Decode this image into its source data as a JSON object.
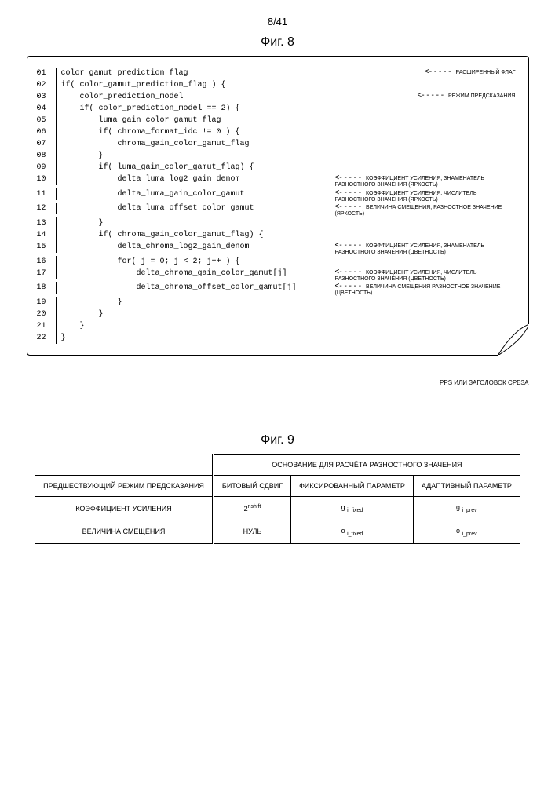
{
  "page": {
    "number": "8/41",
    "fig8_title": "Фиг. 8",
    "fig9_title": "Фиг. 9",
    "caption_right": "PPS ИЛИ ЗАГОЛОВОК СРЕЗА"
  },
  "code": {
    "lines": [
      {
        "n": "01",
        "t": "color_gamut_prediction_flag",
        "a": "РАСШИРЕННЫЙ ФЛАГ"
      },
      {
        "n": "02",
        "t": "if( color_gamut_prediction_flag ) {",
        "a": ""
      },
      {
        "n": "03",
        "t": "    color_prediction_model",
        "a": "РЕЖИМ ПРЕДСКАЗАНИЯ"
      },
      {
        "n": "04",
        "t": "    if( color_prediction_model == 2) {",
        "a": ""
      },
      {
        "n": "05",
        "t": "        luma_gain_color_gamut_flag",
        "a": ""
      },
      {
        "n": "06",
        "t": "        if( chroma_format_idc != 0 ) {",
        "a": ""
      },
      {
        "n": "07",
        "t": "            chroma_gain_color_gamut_flag",
        "a": ""
      },
      {
        "n": "08",
        "t": "        }",
        "a": ""
      },
      {
        "n": "09",
        "t": "        if( luma_gain_color_gamut_flag) {",
        "a": ""
      },
      {
        "n": "10",
        "t": "            delta_luma_log2_gain_denom",
        "a": "КОЭФФИЦИЕНТ УСИЛЕНИЯ, ЗНАМЕНАТЕЛЬ РАЗНОСТНОГО ЗНАЧЕНИЯ (ЯРКОСТЬ)"
      },
      {
        "n": "11",
        "t": "            delta_luma_gain_color_gamut",
        "a": "КОЭФФИЦИЕНТ УСИЛЕНИЯ, ЧИСЛИТЕЛЬ РАЗНОСТНОГО ЗНАЧЕНИЯ (ЯРКОСТЬ)"
      },
      {
        "n": "12",
        "t": "            delta_luma_offset_color_gamut",
        "a": "ВЕЛИЧИНА СМЕЩЕНИЯ, РАЗНОСТНОЕ ЗНАЧЕНИЕ (ЯРКОСТЬ)"
      },
      {
        "n": "13",
        "t": "        }",
        "a": ""
      },
      {
        "n": "14",
        "t": "        if( chroma_gain_color_gamut_flag) {",
        "a": ""
      },
      {
        "n": "15",
        "t": "            delta_chroma_log2_gain_denom",
        "a": "КОЭФФИЦИЕНТ УСИЛЕНИЯ, ЗНАМЕНАТЕЛЬ РАЗНОСТНОГО ЗНАЧЕНИЯ (ЦВЕТНОСТЬ)"
      },
      {
        "n": "16",
        "t": "            for( j = 0; j < 2; j++ ) {",
        "a": ""
      },
      {
        "n": "17",
        "t": "                delta_chroma_gain_color_gamut[j]",
        "a": "КОЭФФИЦИЕНТ УСИЛЕНИЯ, ЧИСЛИТЕЛЬ РАЗНОСТНОГО ЗНАЧЕНИЯ (ЦВЕТНОСТЬ)"
      },
      {
        "n": "18",
        "t": "                delta_chroma_offset_color_gamut[j]",
        "a": "ВЕЛИЧИНА СМЕЩЕНИЯ РАЗНОСТНОЕ ЗНАЧЕНИЕ (ЦВЕТНОСТЬ)"
      },
      {
        "n": "19",
        "t": "            }",
        "a": ""
      },
      {
        "n": "20",
        "t": "        }",
        "a": ""
      },
      {
        "n": "21",
        "t": "    }",
        "a": ""
      },
      {
        "n": "22",
        "t": "}",
        "a": ""
      }
    ],
    "arrow_text": "<- - - - -"
  },
  "table": {
    "header_span": "ОСНОВАНИЕ ДЛЯ РАСЧЁТА РАЗНОСТНОГО ЗНАЧЕНИЯ",
    "row_header": "ПРЕДШЕСТВУЮЩИЙ РЕЖИМ ПРЕДСКАЗАНИЯ",
    "col1": "БИТОВЫЙ СДВИГ",
    "col2": "ФИКСИРОВАННЫЙ ПАРАМЕТР",
    "col3": "АДАПТИВНЫЙ ПАРАМЕТР",
    "r1_label": "КОЭФФИЦИЕНТ УСИЛЕНИЯ",
    "r2_label": "ВЕЛИЧИНА СМЕЩЕНИЯ",
    "r1c1_base": "2",
    "r1c1_sup": "nshift",
    "r1c2_base": "g",
    "r1c2_sub": "i_fixed",
    "r1c3_base": "g",
    "r1c3_sub": "i_prev",
    "r2c1": "НУЛЬ",
    "r2c2_base": "o",
    "r2c2_sub": "i_fixed",
    "r2c3_base": "o",
    "r2c3_sub": "i_prev"
  }
}
